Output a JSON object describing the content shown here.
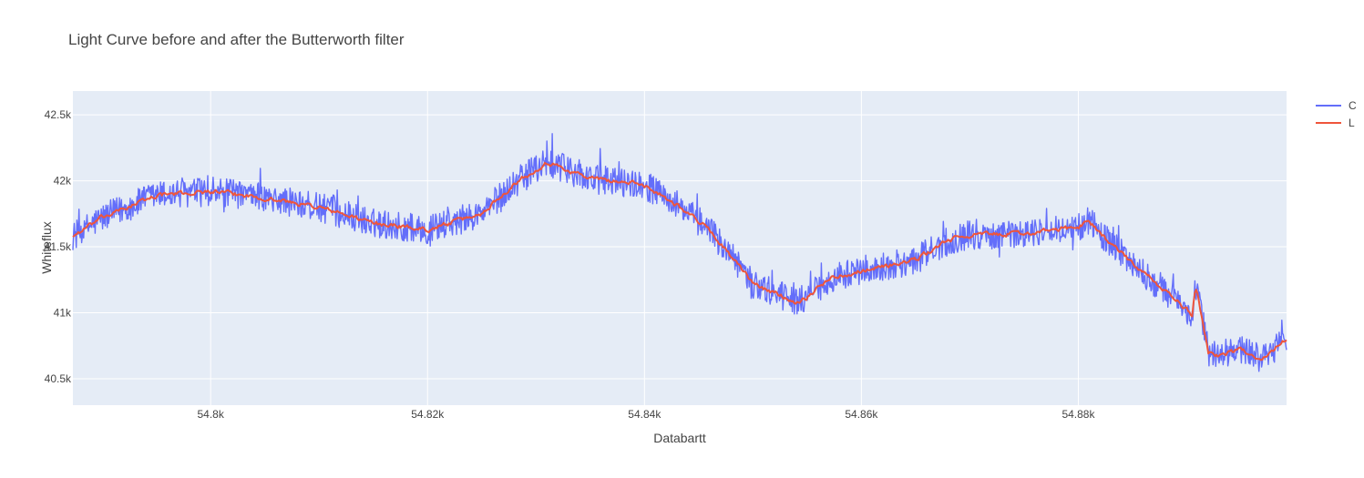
{
  "chart_data": {
    "type": "line",
    "title": "Light Curve before and after the Butterworth filter",
    "xlabel": "Databartt",
    "ylabel": "Whiteflux",
    "xlim": [
      54787.3,
      54899.2
    ],
    "ylim": [
      40300,
      42680
    ],
    "x_ticks": [
      54800,
      54820,
      54840,
      54860,
      54880
    ],
    "x_tick_labels": [
      "54.8k",
      "54.82k",
      "54.84k",
      "54.86k",
      "54.88k"
    ],
    "y_ticks": [
      40500,
      41000,
      41500,
      42000,
      42500
    ],
    "y_tick_labels": [
      "40.5k",
      "41k",
      "41.5k",
      "42k",
      "42.5k"
    ],
    "grid": true,
    "legend_position": "top-right",
    "series": [
      {
        "name": "C",
        "color": "#636efa",
        "noise_amplitude": 110,
        "x": [
          54787.3,
          54790,
          54795,
          54800,
          54805,
          54810,
          54815,
          54820,
          54825,
          54828,
          54831,
          54835,
          54840,
          54843,
          54846,
          54850,
          54854,
          54855,
          54857,
          54860,
          54865,
          54868,
          54870,
          54875,
          54880,
          54881,
          54883,
          54886,
          54889,
          54890.5,
          54890.8,
          54891,
          54891.3,
          54892,
          54893,
          54895,
          54897,
          54899.2
        ],
        "values": [
          41580,
          41720,
          41890,
          41920,
          41870,
          41800,
          41680,
          41630,
          41750,
          41980,
          42140,
          42020,
          41970,
          41820,
          41630,
          41220,
          41080,
          41120,
          41260,
          41320,
          41400,
          41550,
          41590,
          41600,
          41650,
          41700,
          41520,
          41300,
          41100,
          40980,
          41200,
          41150,
          41000,
          40700,
          40680,
          40720,
          40650,
          40800
        ]
      },
      {
        "name": "L",
        "color": "#ef553b",
        "noise_amplitude": 35,
        "x": [
          54787.3,
          54790,
          54795,
          54800,
          54805,
          54810,
          54815,
          54820,
          54825,
          54828,
          54831,
          54835,
          54840,
          54843,
          54846,
          54850,
          54854,
          54855,
          54857,
          54860,
          54865,
          54868,
          54870,
          54875,
          54880,
          54881,
          54883,
          54886,
          54889,
          54890.5,
          54890.8,
          54891,
          54891.3,
          54892,
          54893,
          54895,
          54897,
          54899.2
        ],
        "values": [
          41580,
          41720,
          41890,
          41920,
          41870,
          41800,
          41680,
          41630,
          41750,
          41980,
          42140,
          42020,
          41970,
          41820,
          41630,
          41220,
          41080,
          41120,
          41260,
          41320,
          41400,
          41550,
          41590,
          41600,
          41650,
          41700,
          41520,
          41300,
          41100,
          40980,
          41200,
          41150,
          41000,
          40700,
          40680,
          40720,
          40650,
          40800
        ]
      }
    ]
  },
  "colors": {
    "plot_background": "#e5ecf6",
    "grid": "#ffffff"
  }
}
